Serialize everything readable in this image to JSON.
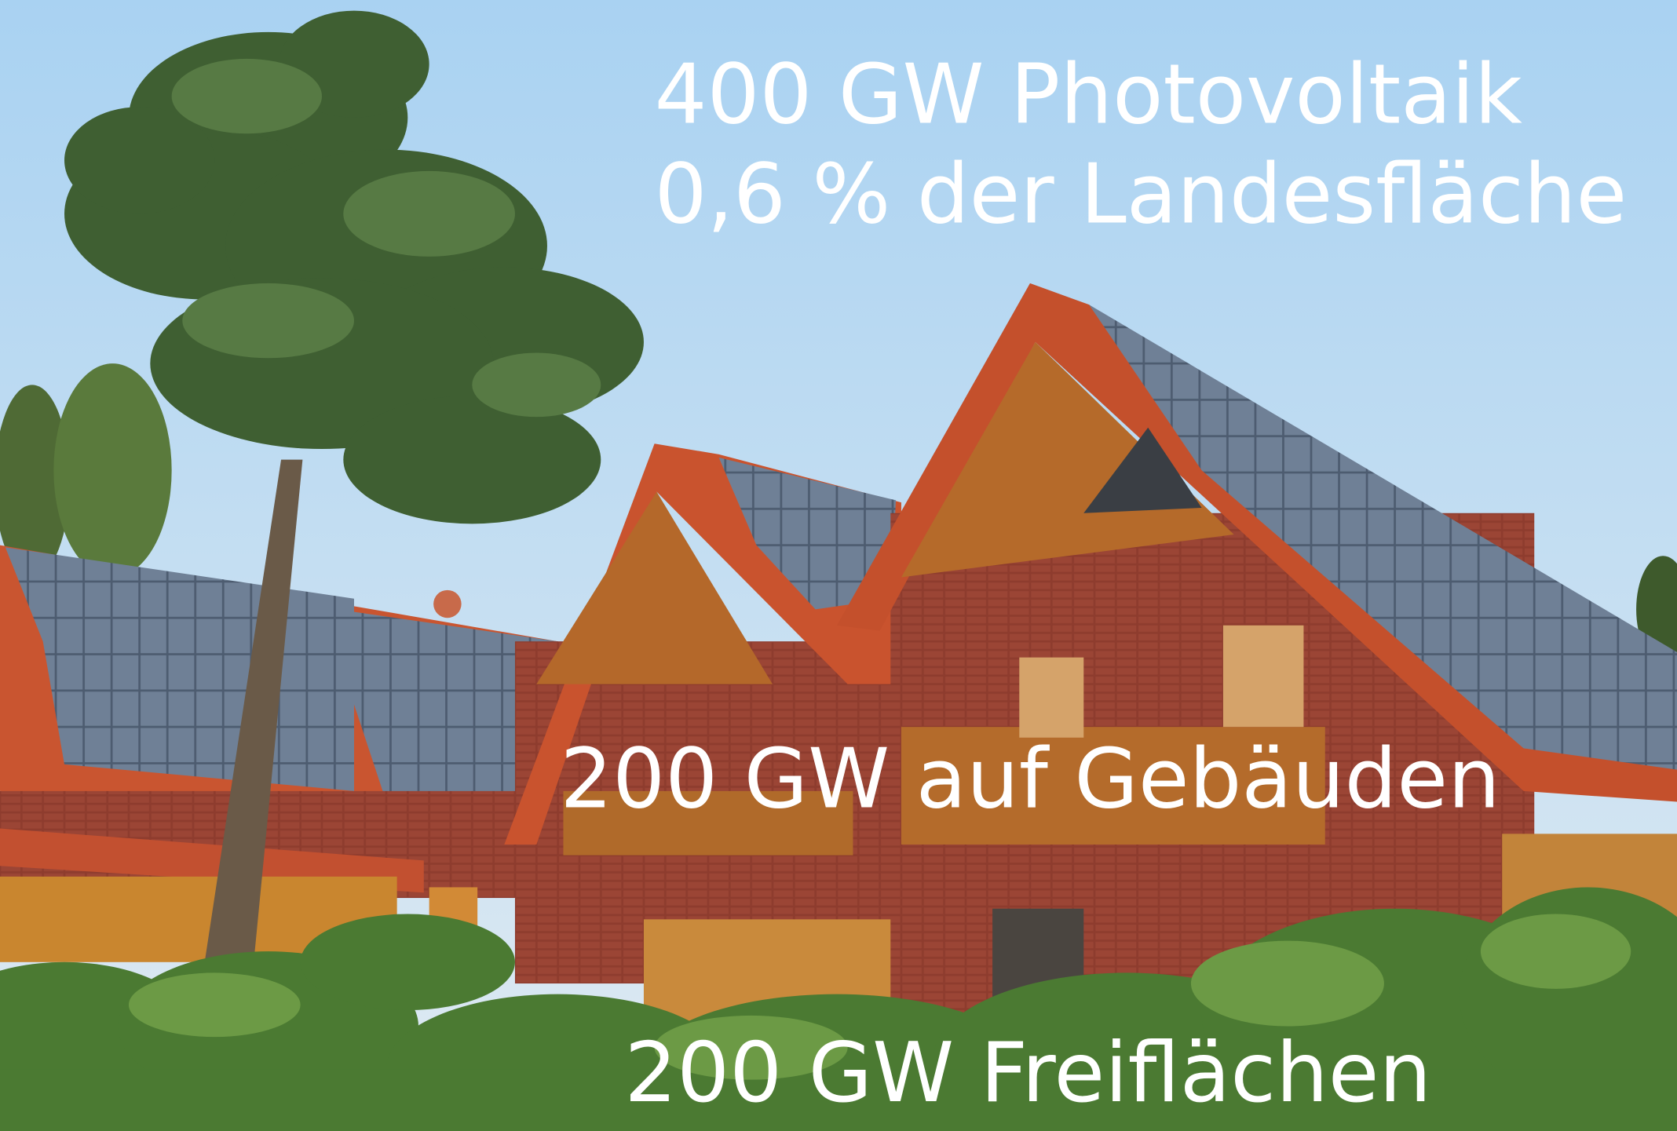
{
  "captions": [
    "400 GW Photovoltaik",
    "0,6 % der Landesfläche",
    "200 GW auf Gebäuden",
    "200 GW Freiflächen"
  ]
}
